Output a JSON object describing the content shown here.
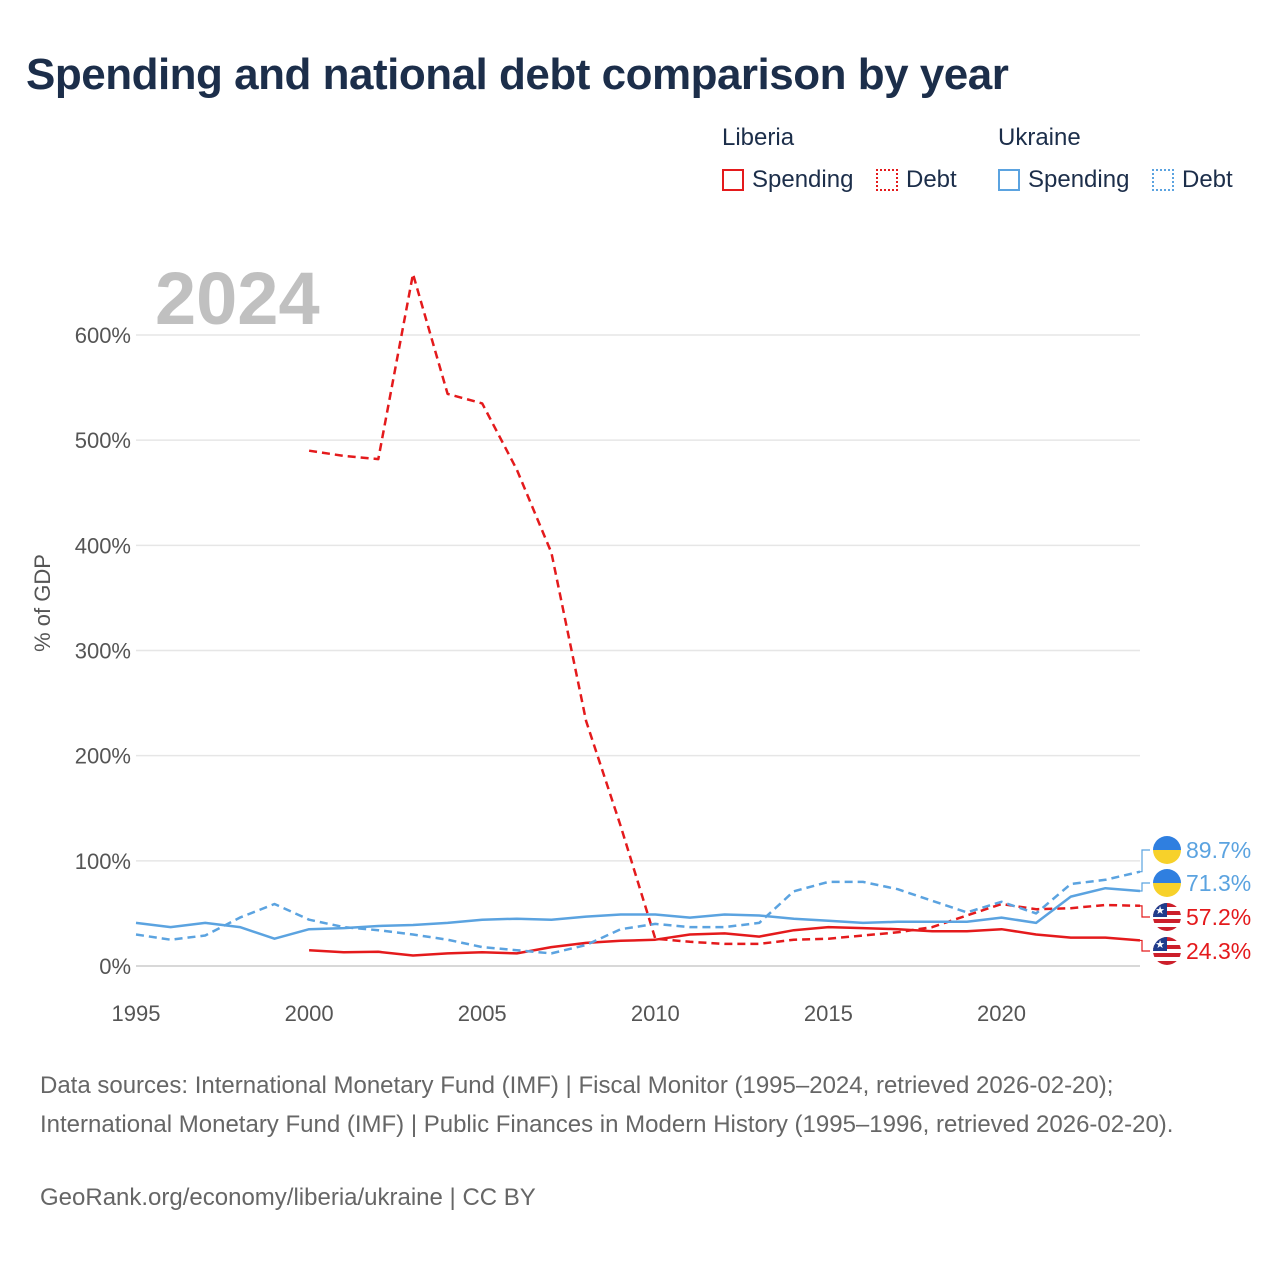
{
  "title": "Spending and national debt comparison by year",
  "legend": {
    "groups": [
      {
        "name": "Liberia",
        "color": "#e41a1c",
        "items": [
          "Spending",
          "Debt"
        ]
      },
      {
        "name": "Ukraine",
        "color": "#5ba3e0",
        "items": [
          "Spending",
          "Debt"
        ]
      }
    ]
  },
  "year_label": "2024",
  "footer": {
    "sources": "Data sources: International Monetary Fund (IMF) | Fiscal Monitor (1995–2024, retrieved 2026-02-20); International Monetary Fund (IMF) | Public Finances in Modern History (1995–1996, retrieved 2026-02-20).",
    "credit": "GeoRank.org/economy/liberia/ukraine | CC BY"
  },
  "chart_data": {
    "type": "line",
    "title": "Spending and national debt comparison by year",
    "xlabel": "",
    "ylabel": "% of GDP",
    "xlim": [
      1995,
      2024
    ],
    "ylim": [
      0,
      650
    ],
    "x_ticks": [
      1995,
      2000,
      2005,
      2010,
      2015,
      2020
    ],
    "y_ticks": [
      0,
      100,
      200,
      300,
      400,
      500,
      600
    ],
    "y_tick_labels": [
      "0%",
      "100%",
      "200%",
      "300%",
      "400%",
      "500%",
      "600%"
    ],
    "grid": true,
    "series": [
      {
        "name": "Liberia Debt",
        "country": "Liberia",
        "metric": "Debt",
        "color": "#e41a1c",
        "dash": true,
        "x": [
          2000,
          2001,
          2002,
          2003,
          2004,
          2005,
          2006,
          2007,
          2008,
          2009,
          2010,
          2011,
          2012,
          2013,
          2014,
          2015,
          2016,
          2017,
          2018,
          2019,
          2020,
          2021,
          2022,
          2023,
          2024
        ],
        "values": [
          490,
          485,
          482,
          658,
          544,
          535,
          472,
          393,
          233,
          133,
          26,
          23,
          21,
          21,
          25,
          26,
          29,
          32,
          37,
          48,
          59,
          54,
          55,
          58,
          57.2
        ],
        "end_label": "57.2%"
      },
      {
        "name": "Liberia Spending",
        "country": "Liberia",
        "metric": "Spending",
        "color": "#e41a1c",
        "dash": false,
        "x": [
          2000,
          2001,
          2002,
          2003,
          2004,
          2005,
          2006,
          2007,
          2008,
          2009,
          2010,
          2011,
          2012,
          2013,
          2014,
          2015,
          2016,
          2017,
          2018,
          2019,
          2020,
          2021,
          2022,
          2023,
          2024
        ],
        "values": [
          15,
          13,
          13.5,
          10,
          12,
          13,
          12,
          18,
          22,
          24,
          25,
          30,
          31,
          28,
          34,
          37,
          36,
          35,
          33,
          33,
          35,
          30,
          27,
          27,
          24.3
        ],
        "end_label": "24.3%"
      },
      {
        "name": "Ukraine Debt",
        "country": "Ukraine",
        "metric": "Debt",
        "color": "#5ba3e0",
        "dash": true,
        "x": [
          1995,
          1996,
          1997,
          1998,
          1999,
          2000,
          2001,
          2002,
          2003,
          2004,
          2005,
          2006,
          2007,
          2008,
          2009,
          2010,
          2011,
          2012,
          2013,
          2014,
          2015,
          2016,
          2017,
          2018,
          2019,
          2020,
          2021,
          2022,
          2023,
          2024
        ],
        "values": [
          30,
          25,
          29,
          46,
          59,
          44,
          37,
          34,
          30,
          25,
          18,
          15,
          12,
          20,
          35,
          40,
          37,
          37,
          41,
          71,
          80,
          80,
          73,
          62,
          51,
          61,
          50,
          78,
          82,
          89.7
        ],
        "end_label": "89.7%"
      },
      {
        "name": "Ukraine Spending",
        "country": "Ukraine",
        "metric": "Spending",
        "color": "#5ba3e0",
        "dash": false,
        "x": [
          1995,
          1996,
          1997,
          1998,
          1999,
          2000,
          2001,
          2002,
          2003,
          2004,
          2005,
          2006,
          2007,
          2008,
          2009,
          2010,
          2011,
          2012,
          2013,
          2014,
          2015,
          2016,
          2017,
          2018,
          2019,
          2020,
          2021,
          2022,
          2023,
          2024
        ],
        "values": [
          41,
          37,
          41,
          37,
          26,
          35,
          36,
          38,
          39,
          41,
          44,
          45,
          44,
          47,
          49,
          49,
          46,
          49,
          48,
          45,
          43,
          41,
          42,
          42,
          42,
          46,
          41,
          66,
          74,
          71.3
        ],
        "end_label": "71.3%"
      }
    ]
  }
}
